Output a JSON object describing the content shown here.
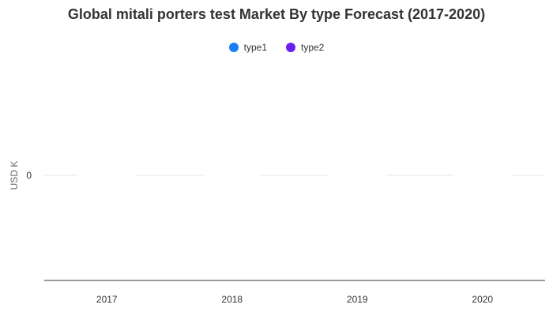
{
  "chart_data": {
    "type": "bar",
    "title": "Global mitali porters test Market By type Forecast (2017-2020)",
    "xlabel": "",
    "ylabel": "USD K",
    "categories": [
      "2017",
      "2018",
      "2019",
      "2020"
    ],
    "series": [
      {
        "name": "type1",
        "color": "#1a7ef5",
        "values": [
          0,
          0,
          0,
          0
        ]
      },
      {
        "name": "type2",
        "color": "#6a1ef0",
        "values": [
          0,
          0,
          0,
          0
        ]
      }
    ],
    "y_ticks": [
      "0"
    ],
    "legend_position": "top-center",
    "grid": true
  }
}
